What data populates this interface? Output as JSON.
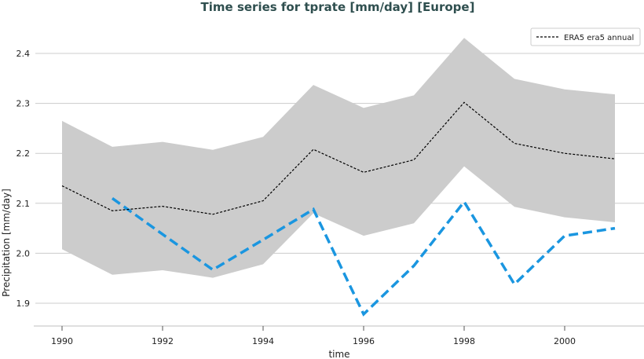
{
  "chart_data": {
    "type": "line",
    "title": "Time series for tprate [mm/day] [Europe]",
    "xlabel": "time",
    "ylabel": "Precipitation [mm/day]",
    "xlim": [
      1989.5,
      2002.2
    ],
    "ylim": [
      1.855,
      2.45
    ],
    "xticks": [
      1990,
      1992,
      1994,
      1996,
      1998,
      2000
    ],
    "yticks": [
      1.9,
      2.0,
      2.1,
      2.2,
      2.3,
      2.4
    ],
    "grid": "horizontal",
    "legend_position": "top-right",
    "colors": {
      "reference": "#000000",
      "model": "#1a96e0",
      "band": "#cccccc",
      "title": "#2f4f4f"
    },
    "band": {
      "x": [
        1990,
        1991,
        1992,
        1993,
        1994,
        1995,
        1996,
        1997,
        1998,
        1999,
        2000,
        2001
      ],
      "upper": [
        2.265,
        2.213,
        2.223,
        2.207,
        2.233,
        2.337,
        2.291,
        2.316,
        2.431,
        2.349,
        2.328,
        2.318
      ],
      "lower": [
        2.008,
        1.957,
        1.966,
        1.951,
        1.978,
        2.08,
        2.035,
        2.06,
        2.174,
        2.093,
        2.072,
        2.062
      ]
    },
    "series": [
      {
        "name": "ERA5 era5 annual",
        "x": [
          1990,
          1991,
          1992,
          1993,
          1994,
          1995,
          1996,
          1997,
          1998,
          1999,
          2000,
          2001
        ],
        "values": [
          2.135,
          2.085,
          2.094,
          2.078,
          2.105,
          2.208,
          2.162,
          2.187,
          2.302,
          2.22,
          2.2,
          2.189
        ]
      },
      {
        "x": [
          1991,
          1992,
          1993,
          1994,
          1995,
          1996,
          1997,
          1998,
          1999,
          2000,
          2001
        ],
        "values": [
          2.11,
          2.038,
          1.967,
          2.027,
          2.088,
          1.878,
          1.975,
          2.103,
          1.938,
          2.035,
          2.05
        ]
      }
    ]
  }
}
